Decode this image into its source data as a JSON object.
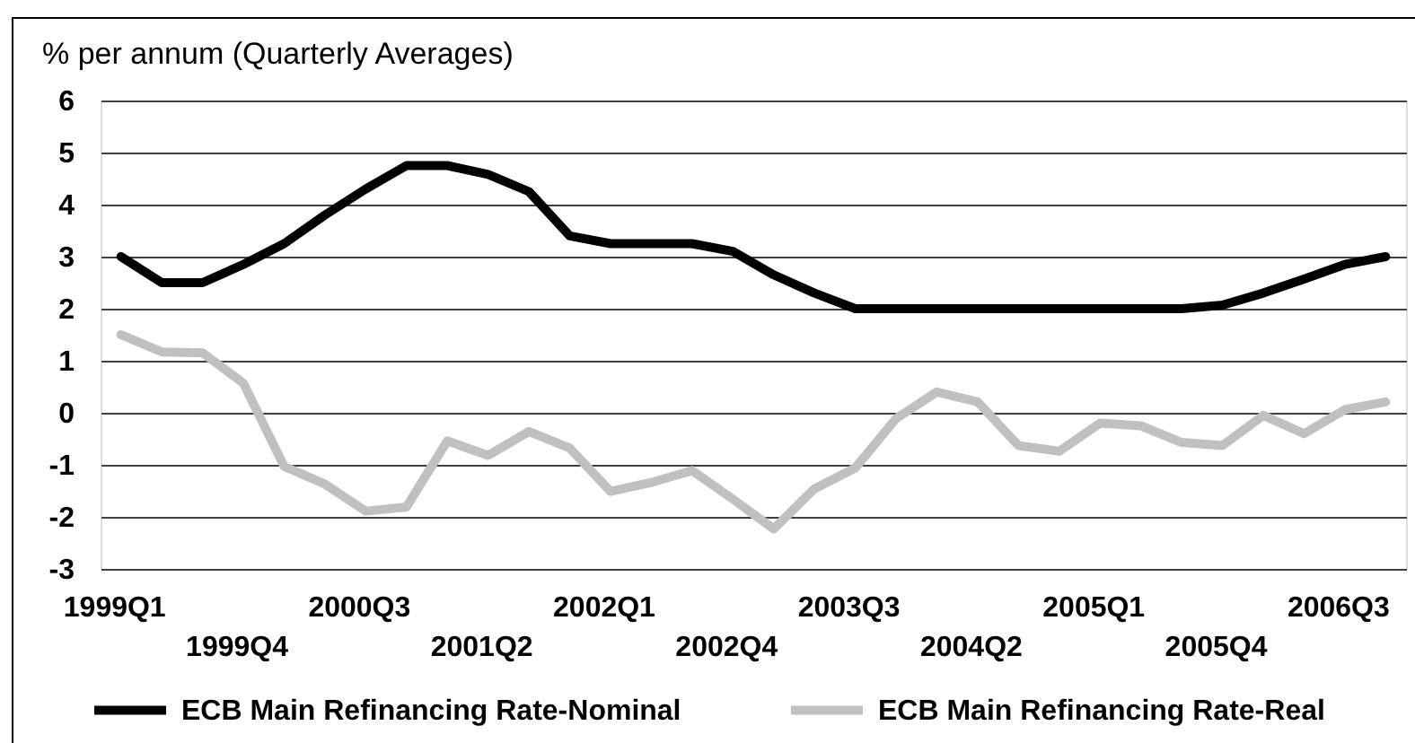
{
  "chart_data": {
    "type": "line",
    "ylabel": "% per annum (Quarterly Averages)",
    "categories": [
      "1999Q1",
      null,
      null,
      "1999Q4",
      null,
      null,
      "2000Q3",
      null,
      null,
      "2001Q2",
      null,
      null,
      "2002Q1",
      null,
      null,
      "2002Q4",
      null,
      null,
      "2003Q3",
      null,
      null,
      "2004Q2",
      null,
      null,
      "2005Q1",
      null,
      null,
      "2005Q4",
      null,
      null,
      "2006Q3",
      null
    ],
    "series": [
      {
        "name": "ECB Main Refinancing Rate-Nominal",
        "color": "#000000",
        "values": [
          3.0,
          2.5,
          2.5,
          2.85,
          3.25,
          3.8,
          4.3,
          4.75,
          4.75,
          4.58,
          4.25,
          3.4,
          3.25,
          3.25,
          3.25,
          3.1,
          2.65,
          2.3,
          2.0,
          2.0,
          2.0,
          2.0,
          2.0,
          2.0,
          2.0,
          2.0,
          2.0,
          2.07,
          2.3,
          2.57,
          2.85,
          3.0
        ]
      },
      {
        "name": "ECB Main Refinancing Rate-Real",
        "color": "#c0c0c0",
        "values": [
          1.5,
          1.17,
          1.15,
          0.57,
          -1.03,
          -1.37,
          -1.89,
          -1.81,
          -0.54,
          -0.82,
          -0.36,
          -0.68,
          -1.51,
          -1.34,
          -1.11,
          -1.66,
          -2.23,
          -1.46,
          -1.06,
          -0.11,
          0.4,
          0.21,
          -0.63,
          -0.74,
          -0.2,
          -0.25,
          -0.57,
          -0.63,
          -0.05,
          -0.4,
          0.06,
          0.21
        ]
      }
    ],
    "ylim": [
      -3,
      6
    ],
    "yticks": [
      -3,
      -2,
      -1,
      0,
      1,
      2,
      3,
      4,
      5,
      6
    ],
    "grid": "y",
    "legend": "bottom",
    "line_style": "solid"
  }
}
